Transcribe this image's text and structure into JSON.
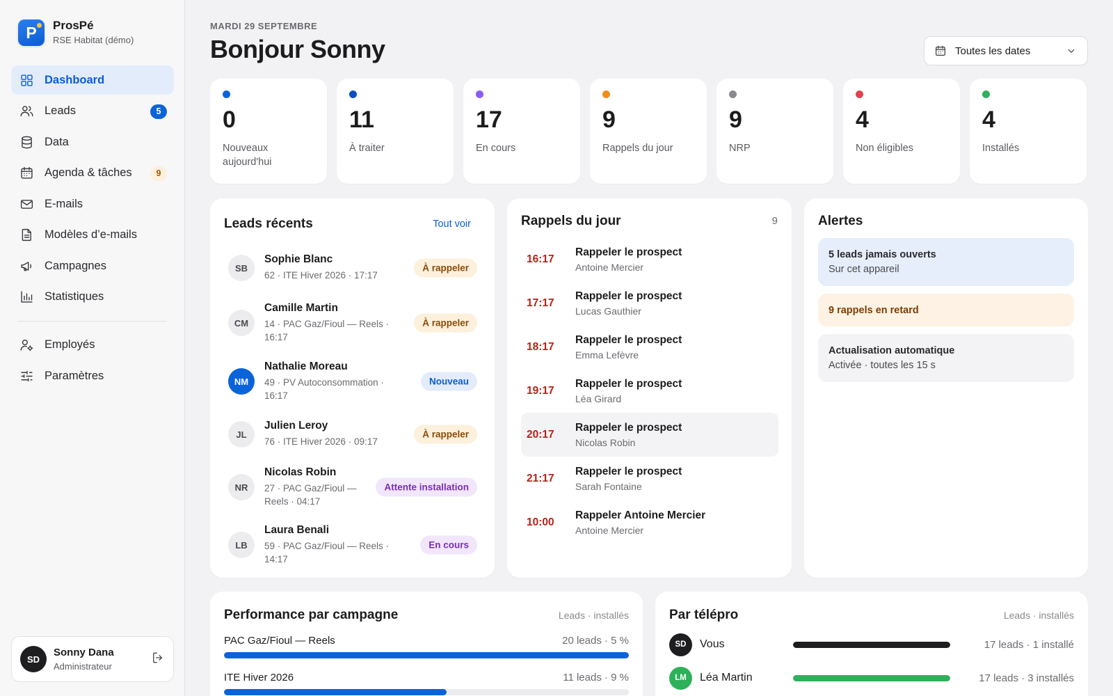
{
  "brand": {
    "logo_letter": "P",
    "name": "ProsPé",
    "subtitle": "RSE Habitat (démo)"
  },
  "nav": {
    "items": [
      {
        "label": "Dashboard",
        "icon": "grid-icon",
        "active": true
      },
      {
        "label": "Leads",
        "icon": "users-icon",
        "badge": "5"
      },
      {
        "label": "Data",
        "icon": "database-icon"
      },
      {
        "label": "Agenda & tâches",
        "icon": "calendar-icon",
        "badge": "9"
      },
      {
        "label": "E-mails",
        "icon": "mail-icon"
      },
      {
        "label": "Modèles d’e-mails",
        "icon": "document-icon"
      },
      {
        "label": "Campagnes",
        "icon": "megaphone-icon"
      },
      {
        "label": "Statistiques",
        "icon": "bar-chart-icon"
      }
    ],
    "secondary": [
      {
        "label": "Employés",
        "icon": "user-settings-icon"
      },
      {
        "label": "Paramètres",
        "icon": "sliders-icon"
      }
    ]
  },
  "user": {
    "initials": "SD",
    "name": "Sonny Dana",
    "role": "Administrateur"
  },
  "header": {
    "date": "MARDI 29 SEPTEMBRE",
    "greeting": "Bonjour Sonny",
    "date_filter": "Toutes les dates"
  },
  "stats": [
    {
      "value": "0",
      "label": "Nouveaux aujourd'hui",
      "color": "#0b63d9"
    },
    {
      "value": "11",
      "label": "À traiter",
      "color": "#0b4fc2"
    },
    {
      "value": "17",
      "label": "En cours",
      "color": "#8b5cf6"
    },
    {
      "value": "9",
      "label": "Rappels du jour",
      "color": "#f08c1a"
    },
    {
      "value": "9",
      "label": "NRP",
      "color": "#8a8a8f"
    },
    {
      "value": "4",
      "label": "Non éligibles",
      "color": "#e0434b"
    },
    {
      "value": "4",
      "label": "Installés",
      "color": "#2fb05a"
    }
  ],
  "leads": {
    "title": "Leads récents",
    "link": "Tout voir",
    "items": [
      {
        "initials": "SB",
        "name": "Sophie Blanc",
        "meta": "62 · ITE Hiver 2026 · 17:17",
        "tag": "À rappeler",
        "tag_style": "amber"
      },
      {
        "initials": "CM",
        "name": "Camille Martin",
        "meta": "14 · PAC Gaz/Fioul — Reels · 16:17",
        "tag": "À rappeler",
        "tag_style": "amber"
      },
      {
        "initials": "NM",
        "name": "Nathalie Moreau",
        "meta": "49 · PV Autoconsommation · 16:17",
        "tag": "Nouveau",
        "tag_style": "blue",
        "avatar_style": "blue"
      },
      {
        "initials": "JL",
        "name": "Julien Leroy",
        "meta": "76 · ITE Hiver 2026 · 09:17",
        "tag": "À rappeler",
        "tag_style": "amber"
      },
      {
        "initials": "NR",
        "name": "Nicolas Robin",
        "meta": "27 · PAC Gaz/Fioul — Reels · 04:17",
        "tag": "Attente installation",
        "tag_style": "purple"
      },
      {
        "initials": "LB",
        "name": "Laura Benali",
        "meta": "59 · PAC Gaz/Fioul — Reels · 14:17",
        "tag": "En cours",
        "tag_style": "purple"
      }
    ]
  },
  "rappels": {
    "title": "Rappels du jour",
    "count": "9",
    "items": [
      {
        "time": "16:17",
        "title": "Rappeler le prospect",
        "name": "Antoine Mercier"
      },
      {
        "time": "17:17",
        "title": "Rappeler le prospect",
        "name": "Lucas Gauthier"
      },
      {
        "time": "18:17",
        "title": "Rappeler le prospect",
        "name": "Emma Lefèvre"
      },
      {
        "time": "19:17",
        "title": "Rappeler le prospect",
        "name": "Léa Girard"
      },
      {
        "time": "20:17",
        "title": "Rappeler le prospect",
        "name": "Nicolas Robin",
        "highlight": true
      },
      {
        "time": "21:17",
        "title": "Rappeler le prospect",
        "name": "Sarah Fontaine"
      },
      {
        "time": "10:00",
        "title": "Rappeler Antoine Mercier",
        "name": "Antoine Mercier"
      }
    ]
  },
  "alertes": {
    "title": "Alertes",
    "items": [
      {
        "title": "5 leads jamais ouverts",
        "sub": "Sur cet appareil",
        "style": "blue"
      },
      {
        "title": "9 rappels en retard",
        "style": "amber"
      },
      {
        "title": "Actualisation automatique",
        "sub": "Activée · toutes les 15 s",
        "style": "gray"
      }
    ]
  },
  "performance": {
    "title": "Performance par campagne",
    "hint": "Leads · installés",
    "rows": [
      {
        "name": "PAC Gaz/Fioul — Reels",
        "value": "20 leads · 5 %",
        "fill": 1.0
      },
      {
        "name": "ITE Hiver 2026",
        "value": "11 leads · 9 %",
        "fill": 0.55
      }
    ]
  },
  "telepro": {
    "title": "Par télépro",
    "hint": "Leads · installés",
    "rows": [
      {
        "initials": "SD",
        "name": "Vous",
        "value": "17 leads · 1 installé",
        "fill": 1.0,
        "color": "#1e1e20"
      },
      {
        "initials": "LM",
        "name": "Léa Martin",
        "value": "17 leads · 3 installés",
        "fill": 1.0,
        "color": "#2fb05a"
      }
    ]
  }
}
